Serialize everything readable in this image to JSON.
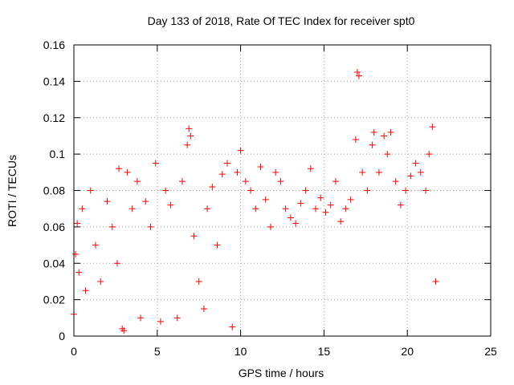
{
  "chart_data": {
    "type": "scatter",
    "title": "Day 133 of 2018, Rate Of TEC Index for receiver spt0",
    "xlabel": "GPS time / hours",
    "ylabel": "ROTI / TECUs",
    "xlim": [
      0,
      25
    ],
    "ylim": [
      0,
      0.16
    ],
    "xticks": [
      0,
      5,
      10,
      15,
      20,
      25
    ],
    "yticks": [
      0,
      0.02,
      0.04,
      0.06,
      0.08,
      0.1,
      0.12,
      0.14,
      0.16
    ],
    "xtick_labels": [
      "0",
      "5",
      "10",
      "15",
      "20",
      "25"
    ],
    "ytick_labels": [
      "0",
      "0.02",
      "0.04",
      "0.06",
      "0.08",
      "0.1",
      "0.12",
      "0.14",
      "0.16"
    ],
    "grid": true,
    "marker": "+",
    "color": "#ff0000",
    "series": [
      {
        "name": "spt0",
        "points": [
          [
            0.0,
            0.012
          ],
          [
            0.1,
            0.045
          ],
          [
            0.2,
            0.062
          ],
          [
            0.3,
            0.035
          ],
          [
            0.5,
            0.07
          ],
          [
            0.7,
            0.025
          ],
          [
            1.0,
            0.08
          ],
          [
            1.3,
            0.05
          ],
          [
            1.6,
            0.03
          ],
          [
            2.0,
            0.074
          ],
          [
            2.3,
            0.06
          ],
          [
            2.6,
            0.04
          ],
          [
            2.7,
            0.092
          ],
          [
            2.9,
            0.004
          ],
          [
            3.0,
            0.003
          ],
          [
            3.2,
            0.09
          ],
          [
            3.5,
            0.07
          ],
          [
            3.8,
            0.085
          ],
          [
            4.0,
            0.01
          ],
          [
            4.3,
            0.074
          ],
          [
            4.6,
            0.06
          ],
          [
            4.9,
            0.095
          ],
          [
            5.2,
            0.008
          ],
          [
            5.5,
            0.08
          ],
          [
            5.8,
            0.072
          ],
          [
            6.2,
            0.01
          ],
          [
            6.5,
            0.085
          ],
          [
            6.8,
            0.105
          ],
          [
            6.9,
            0.114
          ],
          [
            7.0,
            0.11
          ],
          [
            7.2,
            0.055
          ],
          [
            7.5,
            0.03
          ],
          [
            7.8,
            0.015
          ],
          [
            8.0,
            0.07
          ],
          [
            8.3,
            0.082
          ],
          [
            8.6,
            0.05
          ],
          [
            8.9,
            0.089
          ],
          [
            9.2,
            0.095
          ],
          [
            9.5,
            0.005
          ],
          [
            9.8,
            0.09
          ],
          [
            10.0,
            0.102
          ],
          [
            10.3,
            0.085
          ],
          [
            10.6,
            0.08
          ],
          [
            10.9,
            0.07
          ],
          [
            11.2,
            0.093
          ],
          [
            11.5,
            0.075
          ],
          [
            11.8,
            0.06
          ],
          [
            12.1,
            0.09
          ],
          [
            12.4,
            0.085
          ],
          [
            12.7,
            0.07
          ],
          [
            13.0,
            0.065
          ],
          [
            13.3,
            0.062
          ],
          [
            13.6,
            0.073
          ],
          [
            13.9,
            0.08
          ],
          [
            14.2,
            0.092
          ],
          [
            14.5,
            0.07
          ],
          [
            14.8,
            0.076
          ],
          [
            15.1,
            0.068
          ],
          [
            15.4,
            0.072
          ],
          [
            15.7,
            0.085
          ],
          [
            16.0,
            0.063
          ],
          [
            16.3,
            0.07
          ],
          [
            16.6,
            0.075
          ],
          [
            16.9,
            0.108
          ],
          [
            17.0,
            0.145
          ],
          [
            17.1,
            0.143
          ],
          [
            17.3,
            0.09
          ],
          [
            17.6,
            0.08
          ],
          [
            17.9,
            0.105
          ],
          [
            18.0,
            0.112
          ],
          [
            18.3,
            0.09
          ],
          [
            18.6,
            0.11
          ],
          [
            18.8,
            0.1
          ],
          [
            19.0,
            0.112
          ],
          [
            19.3,
            0.085
          ],
          [
            19.6,
            0.072
          ],
          [
            19.9,
            0.08
          ],
          [
            20.2,
            0.088
          ],
          [
            20.5,
            0.095
          ],
          [
            20.8,
            0.09
          ],
          [
            21.1,
            0.08
          ],
          [
            21.3,
            0.1
          ],
          [
            21.5,
            0.115
          ],
          [
            21.7,
            0.03
          ]
        ]
      }
    ]
  }
}
